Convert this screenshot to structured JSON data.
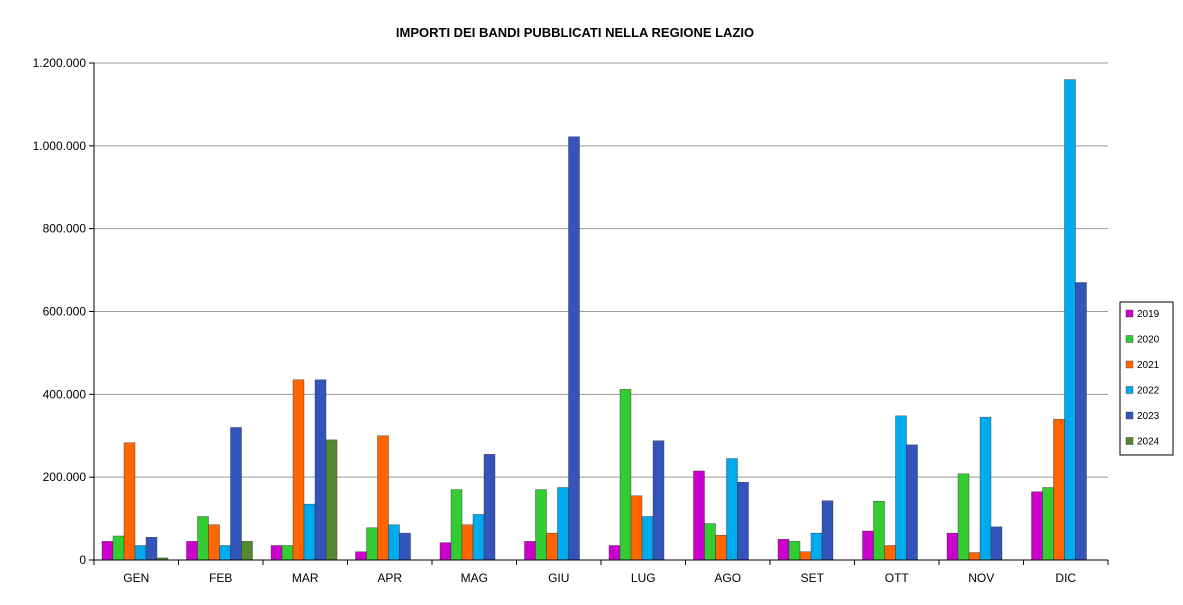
{
  "chart_data": {
    "type": "bar",
    "title": "IMPORTI DEI BANDI PUBBLICATI NELLA REGIONE LAZIO",
    "xlabel": "",
    "ylabel": "",
    "ylim": [
      0,
      1200000
    ],
    "yticks": [
      0,
      200000,
      400000,
      600000,
      800000,
      1000000,
      1200000
    ],
    "ytick_labels": [
      "0",
      "200.000",
      "400.000",
      "600.000",
      "800.000",
      "1.000.000",
      "1.200.000"
    ],
    "grid": true,
    "legend_position": "right",
    "categories": [
      "GEN",
      "FEB",
      "MAR",
      "APR",
      "MAG",
      "GIU",
      "LUG",
      "AGO",
      "SET",
      "OTT",
      "NOV",
      "DIC"
    ],
    "series": [
      {
        "name": "2019",
        "color": "#cc00cc",
        "values": [
          45000,
          45000,
          35000,
          20000,
          42000,
          45000,
          35000,
          215000,
          50000,
          70000,
          65000,
          165000
        ]
      },
      {
        "name": "2020",
        "color": "#33cc33",
        "values": [
          58000,
          105000,
          35000,
          78000,
          170000,
          170000,
          412000,
          88000,
          45000,
          142000,
          208000,
          175000
        ]
      },
      {
        "name": "2021",
        "color": "#ff6600",
        "values": [
          283000,
          85000,
          435000,
          300000,
          85000,
          65000,
          155000,
          60000,
          20000,
          35000,
          18000,
          340000
        ]
      },
      {
        "name": "2022",
        "color": "#00aaee",
        "values": [
          35000,
          35000,
          135000,
          85000,
          110000,
          175000,
          105000,
          245000,
          65000,
          348000,
          345000,
          1160000
        ]
      },
      {
        "name": "2023",
        "color": "#3355bb",
        "values": [
          55000,
          320000,
          435000,
          65000,
          255000,
          1022000,
          288000,
          188000,
          143000,
          278000,
          80000,
          670000
        ]
      },
      {
        "name": "2024",
        "color": "#558833",
        "values": [
          5000,
          45000,
          290000,
          0,
          0,
          0,
          0,
          0,
          0,
          0,
          0,
          0
        ]
      }
    ]
  }
}
